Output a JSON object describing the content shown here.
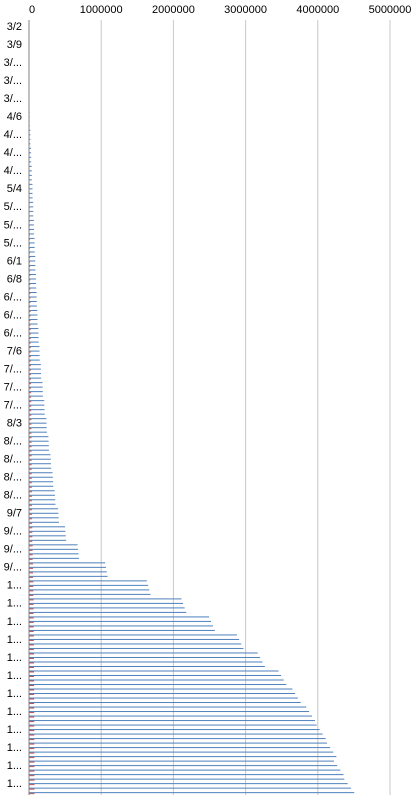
{
  "chart_data": {
    "type": "bar",
    "orientation": "horizontal",
    "xlim": [
      0,
      5000000
    ],
    "x_ticks": [
      "0",
      "1000000",
      "2000000",
      "3000000",
      "4000000",
      "5000000"
    ],
    "y_tick_labels": [
      "3/2",
      "3/9",
      "3/...",
      "3/...",
      "3/...",
      "4/6",
      "4/...",
      "4/...",
      "4/...",
      "5/4",
      "5/...",
      "5/...",
      "5/...",
      "6/1",
      "6/8",
      "6/...",
      "6/...",
      "6/...",
      "7/6",
      "7/...",
      "7/...",
      "7/...",
      "8/3",
      "8/...",
      "8/...",
      "8/...",
      "8/...",
      "9/7",
      "9/...",
      "9/...",
      "9/...",
      "1...",
      "1...",
      "1...",
      "1...",
      "1...",
      "1...",
      "1...",
      "1...",
      "1...",
      "1...",
      "1...",
      "1..."
    ],
    "grid": true,
    "legend": "none",
    "colors": {
      "series1": "#4f81bd",
      "series2": "#c0504d",
      "grid": "#c8c8c8"
    },
    "series": [
      {
        "values": [
          0,
          100,
          500,
          2000,
          5000,
          10000,
          20000,
          30000,
          40000,
          50000,
          60000,
          70000,
          80000,
          90000,
          100000,
          110000,
          120000,
          135000,
          150000,
          170000,
          195000,
          220000,
          250000,
          280000,
          310000,
          340000,
          370000,
          420000,
          520000,
          700000,
          1100000,
          1700000,
          2200000,
          2600000,
          3000000,
          3300000,
          3600000,
          3800000,
          4000000,
          4150000,
          4300000,
          4400000,
          4550000
        ]
      },
      {
        "values": [
          0,
          0,
          0,
          0,
          500,
          1000,
          2000,
          3000,
          5000,
          7000,
          9000,
          11000,
          13000,
          15000,
          17000,
          19000,
          21000,
          23000,
          25000,
          27000,
          29000,
          31000,
          33000,
          35000,
          37000,
          39000,
          41000,
          43000,
          46000,
          50000,
          55000,
          60000,
          63000,
          65000,
          67000,
          69000,
          70000,
          71000,
          72000,
          73000,
          74000,
          75000,
          76000
        ]
      }
    ]
  }
}
